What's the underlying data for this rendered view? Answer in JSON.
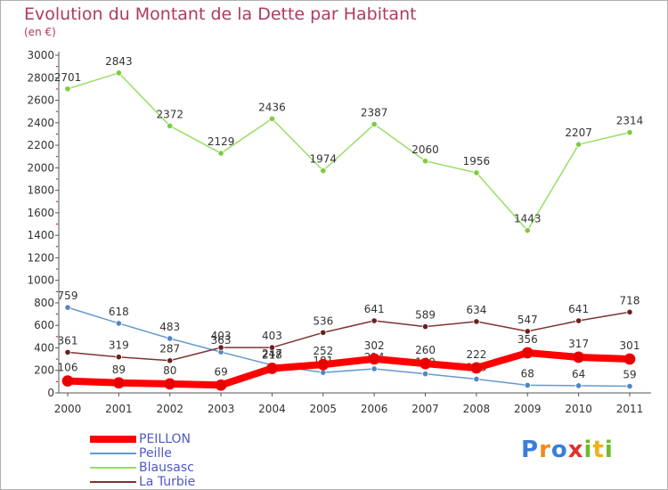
{
  "chart_data": {
    "type": "line",
    "title": "Evolution du Montant de la Dette par Habitant",
    "subtitle": "(en €)",
    "categories": [
      "2000",
      "2001",
      "2002",
      "2003",
      "2004",
      "2005",
      "2006",
      "2007",
      "2008",
      "2009",
      "2010",
      "2011"
    ],
    "ylim": [
      0,
      3000
    ],
    "yticks": [
      0,
      200,
      400,
      600,
      800,
      1000,
      1200,
      1400,
      1600,
      1800,
      2000,
      2200,
      2400,
      2600,
      2800,
      3000
    ],
    "grid": false,
    "legend_position": "bottom-left",
    "series": [
      {
        "name": "PEILLON",
        "color": "#ff0000",
        "marker_color": "#e60000",
        "highlight": true,
        "values": [
          106,
          89,
          80,
          69,
          218,
          252,
          302,
          260,
          222,
          356,
          317,
          301
        ]
      },
      {
        "name": "Peille",
        "color": "#6699cc",
        "marker_color": "#4f86c6",
        "highlight": false,
        "values": [
          759,
          618,
          483,
          363,
          247,
          181,
          214,
          169,
          123,
          68,
          64,
          59
        ]
      },
      {
        "name": "Blausasc",
        "color": "#99dd66",
        "marker_color": "#7ccc3c",
        "highlight": false,
        "values": [
          2701,
          2843,
          2372,
          2129,
          2436,
          1974,
          2387,
          2060,
          1956,
          1443,
          2207,
          2314
        ]
      },
      {
        "name": "La Turbie",
        "color": "#7f3333",
        "marker_color": "#6b1f1f",
        "highlight": false,
        "values": [
          361,
          319,
          287,
          403,
          403,
          536,
          641,
          589,
          634,
          547,
          641,
          718
        ]
      }
    ]
  },
  "brand": {
    "letters": [
      "P",
      "r",
      "o",
      "x",
      "i",
      "t",
      "i"
    ],
    "colors": [
      "#3a7fd6",
      "#f08a1c",
      "#3a7fd6",
      "#e0302a",
      "#6cbb2b",
      "#f0b21c",
      "#6cbb2b"
    ]
  }
}
